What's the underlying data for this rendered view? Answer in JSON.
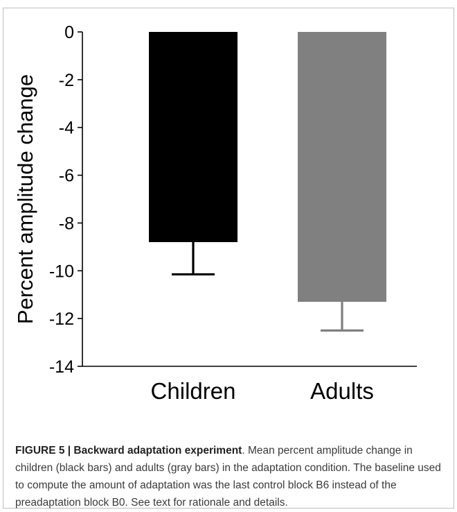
{
  "chart_data": {
    "type": "bar",
    "categories": [
      "Children",
      "Adults"
    ],
    "values": [
      -8.8,
      -11.3
    ],
    "errors": [
      1.35,
      1.2
    ],
    "colors": [
      "#000000",
      "#808080"
    ],
    "ylabel": "Percent amplitude change",
    "xlabel": "",
    "ylim": [
      -14,
      0
    ],
    "yticks": [
      0,
      -2,
      -4,
      -6,
      -8,
      -10,
      -12,
      -14
    ],
    "grid": false
  },
  "caption": {
    "label": "FIGURE 5 | Backward adaptation experiment",
    "text": ". Mean percent amplitude change in children (black bars) and adults (gray bars) in the adaptation condition. The baseline used to compute the amount of adaptation was the last control block B6 instead of the preadaptation block B0. See text for rationale and details."
  }
}
